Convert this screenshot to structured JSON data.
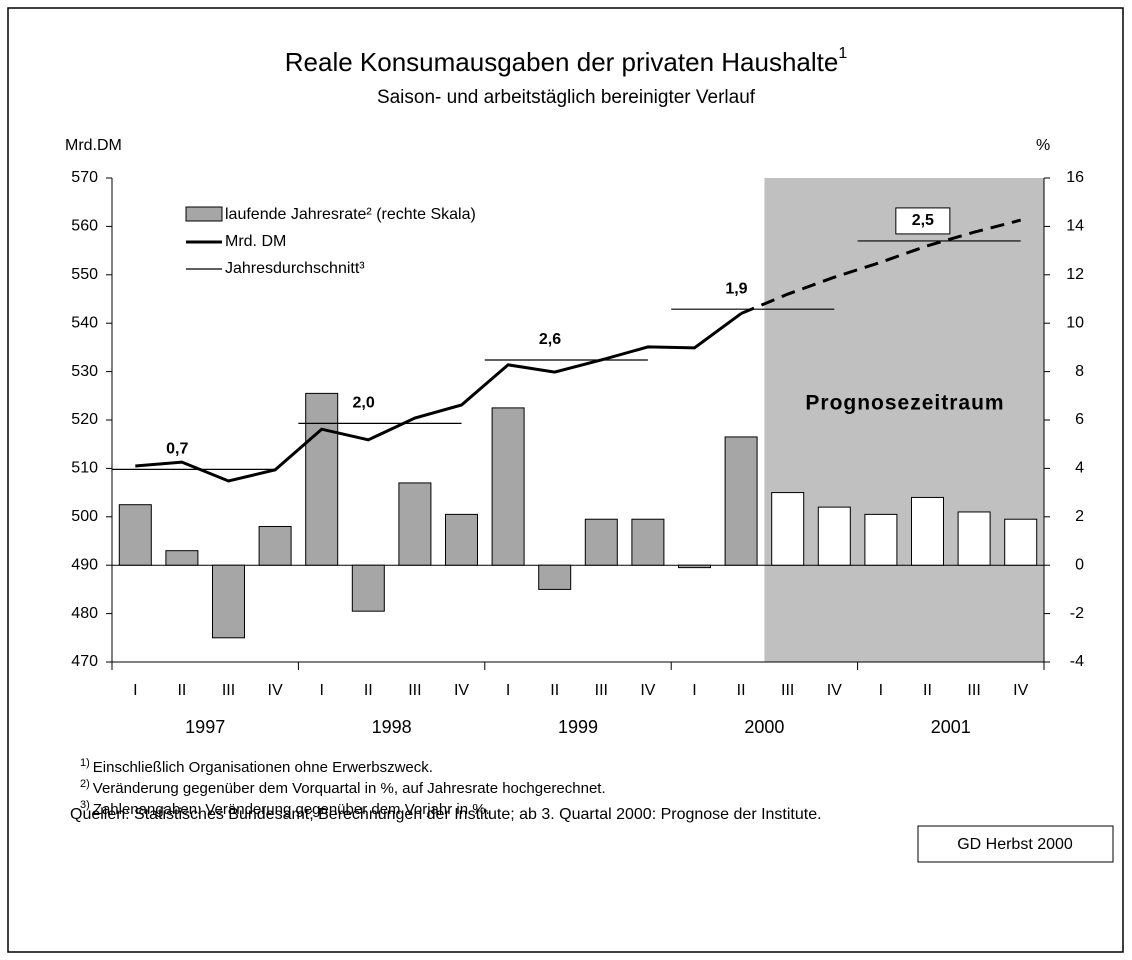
{
  "chart_data": {
    "type": "bar_line",
    "title": "Reale Konsumausgaben der privaten Haushalte",
    "title_note": "1",
    "subtitle": "Saison- und arbeitstäglich bereinigter Verlauf",
    "y_label": "Mrd.DM",
    "y2_label": "%",
    "categories": [
      "I",
      "II",
      "III",
      "IV",
      "I",
      "II",
      "III",
      "IV",
      "I",
      "II",
      "III",
      "IV",
      "I",
      "II",
      "III",
      "IV",
      "I",
      "II",
      "III",
      "IV"
    ],
    "years": [
      "1997",
      "1998",
      "1999",
      "2000",
      "2001"
    ],
    "ylim": [
      470,
      570
    ],
    "yticks": [
      470,
      480,
      490,
      500,
      510,
      520,
      530,
      540,
      550,
      560,
      570
    ],
    "y2lim": [
      -4,
      16
    ],
    "y2ticks": [
      -4,
      -2,
      0,
      2,
      4,
      6,
      8,
      10,
      12,
      14,
      16
    ],
    "forecast_start": 14,
    "forecast_label": "Prognosezeitraum",
    "forecast_color": "#c0c0c0",
    "series": [
      {
        "name": "laufende Jahresrate² (rechte Skala)",
        "type": "bar",
        "axis": "y2",
        "color": "#a6a6a6",
        "forecast_color": "#ffffff",
        "values": [
          2.5,
          0.6,
          -3.0,
          1.6,
          7.1,
          -1.9,
          3.4,
          2.1,
          6.5,
          -1.0,
          1.9,
          1.9,
          -0.1,
          5.3,
          3.0,
          2.4,
          2.1,
          2.8,
          2.2,
          1.9
        ]
      },
      {
        "name": "Mrd. DM",
        "type": "line",
        "color": "#000000",
        "values": [
          510.5,
          511.3,
          507.4,
          509.7,
          518.1,
          515.9,
          520.4,
          523.1,
          531.4,
          529.9,
          532.4,
          535.1,
          534.9,
          542.0,
          546.0,
          549.5,
          552.6,
          556.0,
          558.8,
          561.3
        ]
      }
    ],
    "annual_average": {
      "name": "Jahresdurchschnitt³",
      "levels": [
        509.8,
        519.3,
        532.4,
        542.9,
        557.0
      ],
      "changes": [
        0.7,
        2.0,
        2.6,
        1.9,
        2.5
      ],
      "value_labels": [
        "0,7",
        "2,0",
        "2,6",
        "1,9",
        "2,5"
      ]
    }
  },
  "footnotes": [
    {
      "marker": "1)",
      "text": "Einschließlich Organisationen ohne Erwerbszweck."
    },
    {
      "marker": "2)",
      "text": "Veränderung gegenüber dem Vorquartal in %, auf Jahresrate hochgerechnet."
    },
    {
      "marker": "3)",
      "text": "Zahlenangaben: Veränderung gegenüber dem Vorjahr in %."
    }
  ],
  "source": "Quellen: Statistisches Bundesamt; Berechnungen der Institute; ab 3. Quartal 2000: Prognose der Institute.",
  "badge": "GD Herbst 2000"
}
